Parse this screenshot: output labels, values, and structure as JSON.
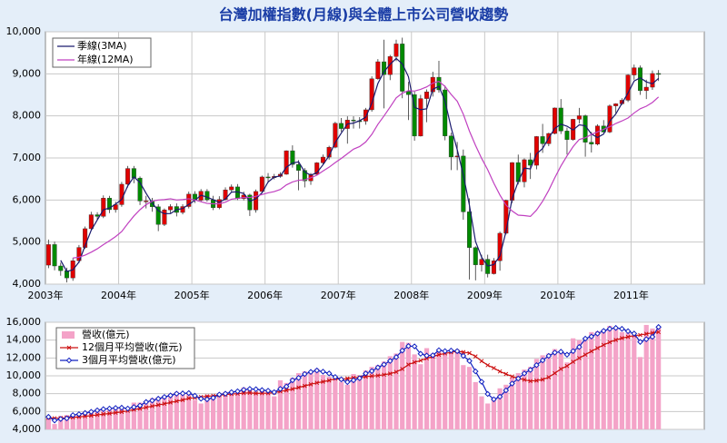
{
  "chart_data": [
    {
      "type": "candlestick",
      "title": "台灣加權指數(月線)與全體上市公司營收趨勢",
      "categories": [
        "2003年",
        null,
        null,
        null,
        null,
        null,
        null,
        null,
        null,
        null,
        null,
        null,
        "2004年",
        null,
        null,
        null,
        null,
        null,
        null,
        null,
        null,
        null,
        null,
        null,
        "2005年",
        null,
        null,
        null,
        null,
        null,
        null,
        null,
        null,
        null,
        null,
        null,
        "2006年",
        null,
        null,
        null,
        null,
        null,
        null,
        null,
        null,
        null,
        null,
        null,
        "2007年",
        null,
        null,
        null,
        null,
        null,
        null,
        null,
        null,
        null,
        null,
        null,
        "2008年",
        null,
        null,
        null,
        null,
        null,
        null,
        null,
        null,
        null,
        null,
        null,
        "2009年",
        null,
        null,
        null,
        null,
        null,
        null,
        null,
        null,
        null,
        null,
        null,
        "2010年",
        null,
        null,
        null,
        null,
        null,
        null,
        null,
        null,
        null,
        null,
        null,
        "2011年",
        null,
        null,
        null,
        null,
        null,
        null,
        null,
        null,
        null,
        null,
        null
      ],
      "open": [
        4452,
        4941,
        4432,
        4321,
        4148,
        4555,
        4872,
        5318,
        5650,
        5611,
        6045,
        5771,
        5890,
        6375,
        6750,
        6522,
        5977,
        5977,
        5839,
        5420,
        5765,
        5845,
        5705,
        5845,
        6140,
        5995,
        6207,
        6006,
        5818,
        6012,
        6241,
        6312,
        6033,
        6118,
        5764,
        6203,
        6548,
        6532,
        6561,
        6613,
        7171,
        6846,
        6704,
        6455,
        6611,
        6884,
        7021,
        7255,
        7823,
        7699,
        7901,
        7884,
        7875,
        8145,
        8883,
        9287,
        8982,
        9411,
        9711,
        8586,
        8506,
        7521,
        8412,
        8572,
        8919,
        8619,
        7523,
        7024,
        7046,
        5719,
        4870,
        4460,
        4591,
        4248,
        4557,
        5210,
        5992,
        6890,
        6432,
        6958,
        6826,
        7509,
        7340,
        7582,
        8188,
        7640,
        7436,
        7920,
        8004,
        7374,
        7329,
        7760,
        7616,
        8238,
        8287,
        8372,
        8973,
        9145,
        8600,
        8683,
        9008,
        null,
        null,
        null,
        null,
        null,
        null,
        null
      ],
      "high": [
        5060,
        5010,
        4510,
        4390,
        4620,
        4930,
        5370,
        5720,
        5710,
        6110,
        6100,
        5960,
        6430,
        6810,
        6810,
        6560,
        6100,
        6050,
        5900,
        5800,
        5900,
        5920,
        5900,
        6200,
        6210,
        6260,
        6260,
        6100,
        6090,
        6300,
        6370,
        6380,
        6200,
        6150,
        6250,
        6580,
        6640,
        6620,
        6660,
        7180,
        7300,
        6950,
        6760,
        6640,
        6900,
        7080,
        7290,
        7860,
        7950,
        7990,
        7990,
        7970,
        8190,
        8940,
        9350,
        9810,
        9450,
        9810,
        9860,
        8810,
        8580,
        8500,
        8630,
        9050,
        9310,
        8720,
        7600,
        7380,
        7200,
        6040,
        4900,
        4700,
        4700,
        4620,
        5250,
        6010,
        6900,
        7080,
        6990,
        7120,
        7520,
        7810,
        7600,
        8200,
        8400,
        7720,
        7930,
        8190,
        8030,
        7620,
        7800,
        7900,
        8270,
        8300,
        8420,
        8990,
        9220,
        9200,
        8860,
        9080,
        9090,
        null,
        null,
        null,
        null,
        null,
        null,
        null
      ],
      "low": [
        4380,
        4330,
        4200,
        4040,
        4080,
        4500,
        4840,
        5280,
        5530,
        5570,
        5690,
        5700,
        5840,
        6300,
        6400,
        5880,
        5800,
        5720,
        5260,
        5380,
        5690,
        5610,
        5660,
        5800,
        5930,
        5950,
        5960,
        5760,
        5780,
        5990,
        6200,
        6000,
        5990,
        5620,
        5700,
        6170,
        6410,
        6490,
        6530,
        6600,
        6770,
        6230,
        6300,
        6360,
        6580,
        6850,
        6960,
        7230,
        7620,
        7340,
        7700,
        7700,
        7790,
        8100,
        8860,
        8180,
        8850,
        9300,
        8420,
        7900,
        7410,
        7510,
        7850,
        8460,
        8550,
        7420,
        6710,
        6710,
        5530,
        4110,
        4090,
        4300,
        4160,
        4230,
        4320,
        5180,
        5930,
        6370,
        6300,
        6500,
        6730,
        7120,
        7280,
        7560,
        7570,
        7080,
        7410,
        7820,
        7030,
        7130,
        7300,
        7610,
        7590,
        8060,
        8260,
        8330,
        8860,
        8500,
        8400,
        8620,
        8830,
        null,
        null,
        null,
        null,
        null,
        null,
        null
      ],
      "close": [
        4941,
        4432,
        4321,
        4148,
        4555,
        4872,
        5318,
        5650,
        5611,
        6045,
        5771,
        5890,
        6375,
        6750,
        6522,
        5977,
        5977,
        5839,
        5420,
        5765,
        5845,
        5705,
        5845,
        6140,
        5995,
        6207,
        6006,
        5818,
        6012,
        6241,
        6312,
        6033,
        6118,
        5764,
        6203,
        6548,
        6532,
        6561,
        6613,
        7171,
        6846,
        6704,
        6455,
        6611,
        6884,
        7021,
        7255,
        7823,
        7699,
        7901,
        7884,
        7875,
        8145,
        8883,
        9287,
        8982,
        9411,
        9711,
        8586,
        8506,
        7521,
        8412,
        8572,
        8919,
        8619,
        7523,
        7024,
        7046,
        5719,
        4870,
        4460,
        4591,
        4248,
        4557,
        5210,
        5992,
        6890,
        6432,
        6958,
        6826,
        7509,
        7340,
        7582,
        8188,
        7640,
        7436,
        7920,
        8004,
        7374,
        7329,
        7760,
        7616,
        8238,
        8287,
        8372,
        8973,
        9145,
        8600,
        8683,
        9008,
        8988,
        null,
        null,
        null,
        null,
        null,
        null,
        null
      ],
      "up_color": "#e00000",
      "down_color": "#008a00",
      "series": [
        {
          "name": "季線(3MA)",
          "color": "#1a1a6e",
          "values": [
            null,
            null,
            4565,
            4300,
            4341,
            4525,
            4915,
            5280,
            5526,
            5769,
            5809,
            5902,
            6012,
            6338,
            6549,
            6416,
            6159,
            5931,
            5745,
            5675,
            5677,
            5772,
            5798,
            5897,
            5993,
            6114,
            6069,
            6010,
            5945,
            6024,
            6188,
            6195,
            6154,
            5972,
            6028,
            6172,
            6428,
            6547,
            6569,
            6782,
            6877,
            6907,
            6668,
            6590,
            6650,
            6839,
            7053,
            7366,
            7592,
            7808,
            7828,
            7887,
            7968,
            8301,
            8772,
            9051,
            9227,
            9368,
            9236,
            8934,
            8204,
            8146,
            8168,
            8634,
            8703,
            8354,
            7722,
            7198,
            6596,
            5878,
            5016,
            4640,
            4433,
            4465,
            4672,
            5253,
            6031,
            6438,
            6760,
            6739,
            7098,
            7225,
            7477,
            7703,
            7803,
            7755,
            7665,
            7787,
            7766,
            7569,
            7488,
            7568,
            7871,
            8047,
            8299,
            8544,
            8830,
            8906,
            8809,
            8764,
            8893,
            null,
            null,
            null,
            null,
            null,
            null,
            null
          ]
        },
        {
          "name": "年線(12MA)",
          "color": "#c040c0",
          "values": [
            null,
            null,
            null,
            null,
            4620,
            4640,
            4690,
            4760,
            4840,
            4940,
            5030,
            5130,
            5250,
            5440,
            5620,
            5770,
            5890,
            5970,
            6000,
            6010,
            6030,
            6000,
            6010,
            6030,
            6000,
            5960,
            5920,
            5910,
            5910,
            5950,
            6020,
            6040,
            6060,
            6060,
            6090,
            6130,
            6170,
            6200,
            6250,
            6360,
            6430,
            6470,
            6480,
            6530,
            6590,
            6690,
            6780,
            6890,
            6990,
            7100,
            7210,
            7270,
            7380,
            7560,
            7800,
            8000,
            8210,
            8430,
            8540,
            8600,
            8590,
            8630,
            8690,
            8780,
            8820,
            8700,
            8510,
            8350,
            8040,
            7640,
            7300,
            6990,
            6720,
            6400,
            6120,
            5880,
            5740,
            5640,
            5630,
            5610,
            5760,
            5970,
            6230,
            6530,
            6810,
            7050,
            7270,
            7440,
            7480,
            7560,
            7620,
            7680,
            7740,
            7820,
            7880,
            7950,
            8070,
            8170,
            8230,
            8320,
            8450,
            null,
            null,
            null,
            null,
            null,
            null,
            null
          ]
        }
      ],
      "ylim": [
        4000,
        10000
      ],
      "yticks": [
        {
          "value": 4000,
          "label": "4,000"
        },
        {
          "value": 5000,
          "label": "5,000"
        },
        {
          "value": 6000,
          "label": "6,000"
        },
        {
          "value": 7000,
          "label": "7,000"
        },
        {
          "value": 8000,
          "label": "8,000"
        },
        {
          "value": 9000,
          "label": "9,000"
        },
        {
          "value": 10000,
          "label": "10,000"
        }
      ],
      "grid": true
    },
    {
      "type": "bar",
      "series": [
        {
          "name": "營收(億元)",
          "type": "bar",
          "color": "#f4a3c8",
          "values": [
            5400,
            4600,
            5500,
            5600,
            5700,
            5800,
            6000,
            6100,
            6300,
            6400,
            6300,
            6500,
            6500,
            6000,
            7000,
            7000,
            7200,
            7500,
            7600,
            7800,
            8000,
            8200,
            7900,
            8100,
            7300,
            6900,
            7900,
            7800,
            8000,
            8200,
            8300,
            8300,
            8700,
            8600,
            8200,
            8400,
            8400,
            7700,
            9500,
            9200,
            9800,
            10300,
            10500,
            10500,
            10800,
            10100,
            9900,
            9600,
            9300,
            9000,
            10200,
            10000,
            10600,
            11000,
            11200,
            11600,
            12200,
            12500,
            13800,
            13700,
            12400,
            11300,
            13100,
            12500,
            13000,
            12800,
            12700,
            12800,
            11200,
            11000,
            9300,
            7700,
            6900,
            7500,
            8600,
            9000,
            9800,
            10300,
            10700,
            11000,
            11900,
            12300,
            12500,
            13000,
            12600,
            11500,
            14200,
            14000,
            14300,
            14900,
            15000,
            15200,
            15600,
            15300,
            14900,
            14800,
            14500,
            12100,
            15700,
            15300,
            15400,
            null,
            null,
            null,
            null,
            null,
            null,
            null
          ]
        },
        {
          "name": "12個月平均營收(億元)",
          "type": "line",
          "marker": "x",
          "color": "#cc1010",
          "values": [
            5300,
            5250,
            5260,
            5300,
            5350,
            5400,
            5470,
            5540,
            5620,
            5700,
            5780,
            5870,
            5960,
            6080,
            6210,
            6330,
            6460,
            6600,
            6730,
            6870,
            7010,
            7160,
            7290,
            7480,
            7550,
            7630,
            7700,
            7770,
            7840,
            7900,
            7960,
            8000,
            8060,
            8090,
            8030,
            8050,
            8050,
            8120,
            8250,
            8370,
            8520,
            8690,
            8870,
            9050,
            9220,
            9340,
            9480,
            9690,
            9600,
            9710,
            9770,
            9840,
            9910,
            9970,
            10030,
            10120,
            10240,
            10440,
            10770,
            11260,
            11520,
            11710,
            11950,
            12160,
            12360,
            12510,
            12640,
            12740,
            12660,
            12540,
            12170,
            11650,
            11190,
            10870,
            10490,
            10200,
            9930,
            9720,
            9560,
            9410,
            9470,
            9580,
            9850,
            10290,
            10770,
            11100,
            11570,
            11990,
            12370,
            12750,
            13110,
            13460,
            13770,
            14020,
            14220,
            14360,
            14520,
            14570,
            14700,
            14810,
            14900,
            null,
            null,
            null,
            null,
            null,
            null,
            null
          ]
        },
        {
          "name": "3個月平均營收(億元)",
          "type": "line",
          "marker": "diamond",
          "color": "#1020c0",
          "values": [
            5400,
            5000,
            5167,
            5233,
            5600,
            5700,
            5833,
            5967,
            6133,
            6267,
            6333,
            6400,
            6433,
            6333,
            6500,
            6667,
            7067,
            7233,
            7433,
            7633,
            7800,
            8000,
            8033,
            8067,
            7767,
            7433,
            7367,
            7533,
            7900,
            8000,
            8167,
            8267,
            8433,
            8533,
            8500,
            8400,
            8333,
            8167,
            8533,
            8800,
            9500,
            9767,
            10200,
            10433,
            10600,
            10467,
            10267,
            9867,
            9600,
            9300,
            9500,
            9733,
            10267,
            10533,
            10933,
            11267,
            11667,
            12100,
            12833,
            13333,
            13300,
            12467,
            12267,
            12300,
            12867,
            12767,
            12833,
            12767,
            12233,
            11667,
            10500,
            9333,
            7967,
            7367,
            7667,
            8367,
            9133,
            9700,
            10267,
            10667,
            11200,
            11733,
            12233,
            12600,
            12700,
            12367,
            12767,
            13233,
            14167,
            14400,
            14733,
            15033,
            15267,
            15367,
            15267,
            15000,
            14733,
            13800,
            14100,
            14367,
            15467,
            null,
            null,
            null,
            null,
            null,
            null,
            null
          ]
        }
      ],
      "ylim": [
        4000,
        16000
      ],
      "yticks": [
        {
          "value": 4000,
          "label": "4,000"
        },
        {
          "value": 6000,
          "label": "6,000"
        },
        {
          "value": 8000,
          "label": "8,000"
        },
        {
          "value": 10000,
          "label": "10,000"
        },
        {
          "value": 12000,
          "label": "12,000"
        },
        {
          "value": 14000,
          "label": "14,000"
        },
        {
          "value": 16000,
          "label": "16,000"
        }
      ],
      "grid": true
    }
  ]
}
